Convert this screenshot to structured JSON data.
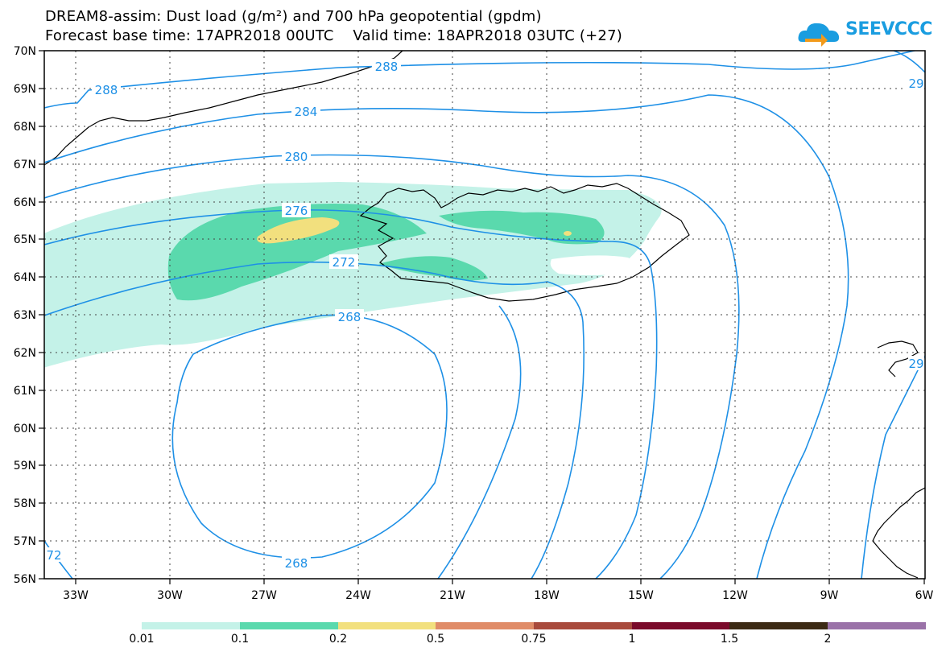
{
  "title_line1": "DREAM8-assim: Dust load (g/m²) and 700 hPa geopotential (gpdm)",
  "title_line2_base": "Forecast base time: 17APR2018 00UTC",
  "title_line2_valid": "Valid time: 18APR2018 03UTC (+27)",
  "logo_text": "SEEVCCC",
  "lat_labels": [
    "70N",
    "69N",
    "68N",
    "67N",
    "66N",
    "65N",
    "64N",
    "63N",
    "62N",
    "61N",
    "60N",
    "59N",
    "58N",
    "57N",
    "56N"
  ],
  "lon_labels": [
    "33W",
    "30W",
    "27W",
    "24W",
    "21W",
    "18W",
    "15W",
    "12W",
    "9W",
    "6W"
  ],
  "contour_labels": {
    "c288a": "288",
    "c288b": "288",
    "c284": "284",
    "c280": "280",
    "c276": "276",
    "c272": "272",
    "c268a": "268",
    "c268b": "268",
    "c272w": "72",
    "c29a": "29",
    "c29b": "29"
  },
  "colors": {
    "contour": "#1e90e6",
    "dust1": "#c4f2e8",
    "dust2": "#5ad9ad",
    "dust3": "#f2e07e"
  },
  "colorbar": {
    "labels": [
      "0.01",
      "0.1",
      "0.2",
      "0.5",
      "0.75",
      "1",
      "1.5",
      "2"
    ],
    "colors": [
      "#c4f2e8",
      "#5ad9ad",
      "#f2e07e",
      "#e08c68",
      "#a84a3c",
      "#7a0a2a",
      "#3c2a14",
      "#9a72a8"
    ]
  }
}
